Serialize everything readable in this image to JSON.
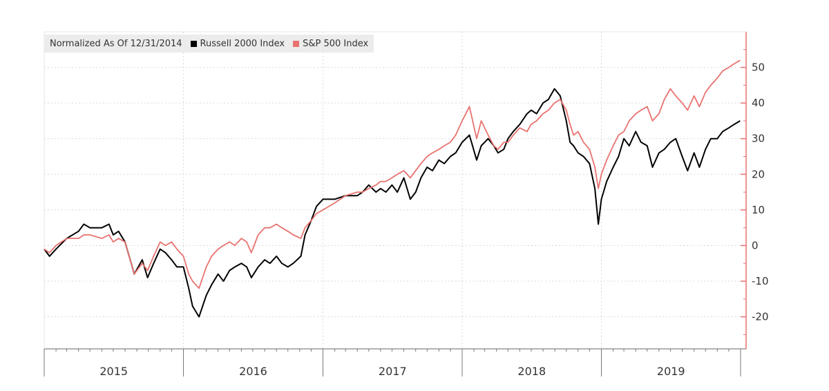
{
  "chart_data": {
    "type": "line",
    "title": "",
    "legend_title": "Normalized As Of 12/31/2014",
    "legend_position": "top-left",
    "xlabel": "",
    "ylabel": "",
    "x_tick_labels": [
      "2015",
      "2016",
      "2017",
      "2018",
      "2019"
    ],
    "y_ticks": [
      50,
      40,
      30,
      20,
      10,
      0,
      -10,
      -20
    ],
    "y_tick_labels": [
      "50",
      "40",
      "30",
      "20",
      "10",
      "0",
      "-10",
      "-20"
    ],
    "xlim": [
      "2015-01-01",
      "2020-01-01"
    ],
    "ylim": [
      -29,
      60
    ],
    "y_axis_side": "right",
    "grid": true,
    "series": [
      {
        "name": "Russell 2000 Index",
        "color": "#000000",
        "x": [
          "2015-01-01",
          "2015-01-15",
          "2015-02-01",
          "2015-03-01",
          "2015-04-01",
          "2015-04-15",
          "2015-05-01",
          "2015-06-01",
          "2015-06-20",
          "2015-07-01",
          "2015-07-15",
          "2015-08-01",
          "2015-08-20",
          "2015-08-25",
          "2015-09-15",
          "2015-09-29",
          "2015-10-15",
          "2015-11-01",
          "2015-11-15",
          "2015-12-01",
          "2015-12-15",
          "2016-01-01",
          "2016-01-15",
          "2016-01-25",
          "2016-02-11",
          "2016-03-01",
          "2016-03-15",
          "2016-04-01",
          "2016-04-15",
          "2016-05-01",
          "2016-05-15",
          "2016-06-01",
          "2016-06-15",
          "2016-06-27",
          "2016-07-15",
          "2016-08-01",
          "2016-08-15",
          "2016-09-01",
          "2016-09-15",
          "2016-10-01",
          "2016-10-15",
          "2016-11-04",
          "2016-11-15",
          "2016-12-01",
          "2016-12-15",
          "2017-01-01",
          "2017-02-01",
          "2017-03-01",
          "2017-04-01",
          "2017-04-15",
          "2017-05-01",
          "2017-05-20",
          "2017-06-01",
          "2017-06-15",
          "2017-07-01",
          "2017-07-15",
          "2017-08-01",
          "2017-08-18",
          "2017-09-01",
          "2017-09-15",
          "2017-10-01",
          "2017-10-15",
          "2017-11-01",
          "2017-11-15",
          "2017-12-01",
          "2017-12-15",
          "2018-01-01",
          "2018-01-20",
          "2018-02-08",
          "2018-02-20",
          "2018-03-10",
          "2018-03-25",
          "2018-04-05",
          "2018-04-20",
          "2018-05-01",
          "2018-05-15",
          "2018-06-01",
          "2018-06-20",
          "2018-07-01",
          "2018-07-15",
          "2018-08-01",
          "2018-08-15",
          "2018-08-31",
          "2018-09-15",
          "2018-10-01",
          "2018-10-11",
          "2018-10-20",
          "2018-11-01",
          "2018-11-15",
          "2018-12-01",
          "2018-12-15",
          "2018-12-24",
          "2019-01-01",
          "2019-01-15",
          "2019-02-01",
          "2019-02-15",
          "2019-03-01",
          "2019-03-15",
          "2019-04-01",
          "2019-04-15",
          "2019-05-01",
          "2019-05-15",
          "2019-06-01",
          "2019-06-15",
          "2019-07-01",
          "2019-07-15",
          "2019-08-01",
          "2019-08-15",
          "2019-09-01",
          "2019-09-15",
          "2019-10-01",
          "2019-10-15",
          "2019-11-01",
          "2019-11-15",
          "2019-12-01",
          "2019-12-15",
          "2019-12-31"
        ],
        "values": [
          -1,
          -3,
          -1,
          2,
          4,
          6,
          5,
          5,
          6,
          3,
          4,
          1,
          -6,
          -8,
          -4,
          -9,
          -5,
          -1,
          -2,
          -4,
          -6,
          -6,
          -12,
          -17,
          -20,
          -14,
          -11,
          -8,
          -10,
          -7,
          -6,
          -5,
          -6,
          -9,
          -6,
          -4,
          -5,
          -3,
          -5,
          -6,
          -5,
          -3,
          3,
          7,
          11,
          13,
          13,
          14,
          14,
          15,
          17,
          15,
          16,
          15,
          17,
          15,
          19,
          13,
          15,
          19,
          22,
          21,
          24,
          23,
          25,
          26,
          29,
          31,
          24,
          28,
          30,
          28,
          26,
          27,
          30,
          32,
          34,
          37,
          38,
          37,
          40,
          41,
          44,
          42,
          35,
          29,
          28,
          26,
          25,
          23,
          16,
          6,
          13,
          18,
          22,
          25,
          30,
          28,
          32,
          29,
          28,
          22,
          26,
          27,
          29,
          30,
          25,
          21,
          26,
          22,
          27,
          30,
          30,
          32,
          33,
          34,
          35
        ]
      },
      {
        "name": "S&P 500 Index",
        "color": "#e8726f",
        "x": [
          "2015-01-01",
          "2015-01-15",
          "2015-02-01",
          "2015-03-01",
          "2015-04-01",
          "2015-04-15",
          "2015-05-01",
          "2015-06-01",
          "2015-06-20",
          "2015-07-01",
          "2015-07-15",
          "2015-08-01",
          "2015-08-20",
          "2015-08-25",
          "2015-09-15",
          "2015-09-29",
          "2015-10-15",
          "2015-11-01",
          "2015-11-15",
          "2015-12-01",
          "2015-12-15",
          "2016-01-01",
          "2016-01-15",
          "2016-01-25",
          "2016-02-11",
          "2016-03-01",
          "2016-03-15",
          "2016-04-01",
          "2016-04-15",
          "2016-05-01",
          "2016-05-15",
          "2016-06-01",
          "2016-06-15",
          "2016-06-27",
          "2016-07-15",
          "2016-08-01",
          "2016-08-15",
          "2016-09-01",
          "2016-09-15",
          "2016-10-01",
          "2016-10-15",
          "2016-11-04",
          "2016-11-15",
          "2016-12-01",
          "2016-12-15",
          "2017-01-01",
          "2017-02-01",
          "2017-03-01",
          "2017-04-01",
          "2017-04-15",
          "2017-05-01",
          "2017-05-20",
          "2017-06-01",
          "2017-06-15",
          "2017-07-01",
          "2017-07-15",
          "2017-08-01",
          "2017-08-18",
          "2017-09-01",
          "2017-09-15",
          "2017-10-01",
          "2017-10-15",
          "2017-11-01",
          "2017-11-15",
          "2017-12-01",
          "2017-12-15",
          "2018-01-01",
          "2018-01-20",
          "2018-02-08",
          "2018-02-20",
          "2018-03-10",
          "2018-03-25",
          "2018-04-05",
          "2018-04-20",
          "2018-05-01",
          "2018-05-15",
          "2018-06-01",
          "2018-06-20",
          "2018-07-01",
          "2018-07-15",
          "2018-08-01",
          "2018-08-15",
          "2018-08-31",
          "2018-09-15",
          "2018-10-01",
          "2018-10-11",
          "2018-10-20",
          "2018-11-01",
          "2018-11-15",
          "2018-12-01",
          "2018-12-15",
          "2018-12-24",
          "2019-01-01",
          "2019-01-15",
          "2019-02-01",
          "2019-02-15",
          "2019-03-01",
          "2019-03-15",
          "2019-04-01",
          "2019-04-15",
          "2019-05-01",
          "2019-05-15",
          "2019-06-01",
          "2019-06-15",
          "2019-07-01",
          "2019-07-15",
          "2019-08-01",
          "2019-08-15",
          "2019-09-01",
          "2019-09-15",
          "2019-10-01",
          "2019-10-15",
          "2019-11-01",
          "2019-11-15",
          "2019-12-01",
          "2019-12-15",
          "2019-12-31"
        ],
        "values": [
          -1,
          -2,
          0,
          2,
          2,
          3,
          3,
          2,
          3,
          1,
          2,
          1,
          -6,
          -8,
          -5,
          -7,
          -3,
          1,
          0,
          1,
          -1,
          -3,
          -8,
          -10,
          -12,
          -6,
          -3,
          -1,
          0,
          1,
          0,
          2,
          1,
          -2,
          3,
          5,
          5,
          6,
          5,
          4,
          3,
          2,
          5,
          7,
          9,
          10,
          12,
          14,
          15,
          15,
          16,
          17,
          18,
          18,
          19,
          20,
          21,
          19,
          21,
          23,
          25,
          26,
          27,
          28,
          29,
          31,
          35,
          39,
          30,
          35,
          31,
          28,
          27,
          29,
          29,
          31,
          33,
          32,
          34,
          35,
          37,
          38,
          40,
          41,
          38,
          34,
          31,
          32,
          29,
          27,
          22,
          16,
          20,
          24,
          28,
          31,
          32,
          35,
          37,
          38,
          39,
          35,
          37,
          41,
          44,
          42,
          40,
          38,
          42,
          39,
          43,
          45,
          47,
          49,
          50,
          51,
          52
        ]
      }
    ]
  }
}
